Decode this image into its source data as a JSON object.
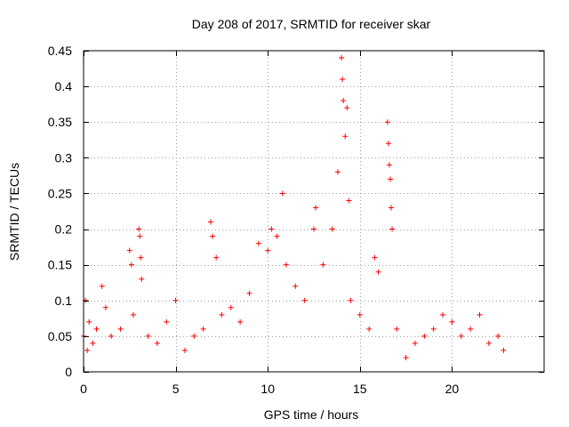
{
  "chart_data": {
    "type": "scatter",
    "title": "Day 208 of 2017, SRMTID for receiver skar",
    "xlabel": "GPS time / hours",
    "ylabel": "SRMTID / TECUs",
    "xlim": [
      0,
      25
    ],
    "ylim": [
      0,
      0.45
    ],
    "x_ticks": [
      {
        "value": 0,
        "label": "0"
      },
      {
        "value": 5,
        "label": "5"
      },
      {
        "value": 10,
        "label": "10"
      },
      {
        "value": 15,
        "label": "15"
      },
      {
        "value": 20,
        "label": "20"
      }
    ],
    "y_ticks": [
      {
        "value": 0,
        "label": "0"
      },
      {
        "value": 0.05,
        "label": "0.05"
      },
      {
        "value": 0.1,
        "label": "0.1"
      },
      {
        "value": 0.15,
        "label": "0.15"
      },
      {
        "value": 0.2,
        "label": "0.2"
      },
      {
        "value": 0.25,
        "label": "0.25"
      },
      {
        "value": 0.3,
        "label": "0.3"
      },
      {
        "value": 0.35,
        "label": "0.35"
      },
      {
        "value": 0.4,
        "label": "0.4"
      },
      {
        "value": 0.45,
        "label": "0.45"
      }
    ],
    "grid": true,
    "marker": "plus",
    "color": "#ff0000",
    "x_data_range": [
      0,
      22.8
    ],
    "series": [
      {
        "name": "SRMTID",
        "points": [
          {
            "x": 0.0,
            "y": 0.05
          },
          {
            "x": 0.1,
            "y": 0.1
          },
          {
            "x": 0.2,
            "y": 0.03
          },
          {
            "x": 0.3,
            "y": 0.07
          },
          {
            "x": 0.5,
            "y": 0.04
          },
          {
            "x": 0.7,
            "y": 0.06
          },
          {
            "x": 1.0,
            "y": 0.12
          },
          {
            "x": 1.2,
            "y": 0.09
          },
          {
            "x": 1.5,
            "y": 0.05
          },
          {
            "x": 2.0,
            "y": 0.06
          },
          {
            "x": 2.5,
            "y": 0.17
          },
          {
            "x": 2.6,
            "y": 0.15
          },
          {
            "x": 2.7,
            "y": 0.08
          },
          {
            "x": 3.0,
            "y": 0.2
          },
          {
            "x": 3.05,
            "y": 0.19
          },
          {
            "x": 3.1,
            "y": 0.16
          },
          {
            "x": 3.15,
            "y": 0.13
          },
          {
            "x": 3.5,
            "y": 0.05
          },
          {
            "x": 4.0,
            "y": 0.04
          },
          {
            "x": 4.5,
            "y": 0.07
          },
          {
            "x": 5.0,
            "y": 0.1
          },
          {
            "x": 5.5,
            "y": 0.03
          },
          {
            "x": 6.0,
            "y": 0.05
          },
          {
            "x": 6.5,
            "y": 0.06
          },
          {
            "x": 6.9,
            "y": 0.21
          },
          {
            "x": 7.0,
            "y": 0.19
          },
          {
            "x": 7.2,
            "y": 0.16
          },
          {
            "x": 7.5,
            "y": 0.08
          },
          {
            "x": 8.0,
            "y": 0.09
          },
          {
            "x": 8.5,
            "y": 0.07
          },
          {
            "x": 9.0,
            "y": 0.11
          },
          {
            "x": 9.5,
            "y": 0.18
          },
          {
            "x": 10.0,
            "y": 0.17
          },
          {
            "x": 10.2,
            "y": 0.2
          },
          {
            "x": 10.5,
            "y": 0.19
          },
          {
            "x": 10.8,
            "y": 0.25
          },
          {
            "x": 11.0,
            "y": 0.15
          },
          {
            "x": 11.5,
            "y": 0.12
          },
          {
            "x": 12.0,
            "y": 0.1
          },
          {
            "x": 12.5,
            "y": 0.2
          },
          {
            "x": 12.6,
            "y": 0.23
          },
          {
            "x": 13.0,
            "y": 0.15
          },
          {
            "x": 13.5,
            "y": 0.2
          },
          {
            "x": 13.8,
            "y": 0.28
          },
          {
            "x": 14.0,
            "y": 0.44
          },
          {
            "x": 14.05,
            "y": 0.41
          },
          {
            "x": 14.1,
            "y": 0.38
          },
          {
            "x": 14.2,
            "y": 0.33
          },
          {
            "x": 14.3,
            "y": 0.37
          },
          {
            "x": 14.4,
            "y": 0.24
          },
          {
            "x": 14.5,
            "y": 0.1
          },
          {
            "x": 15.0,
            "y": 0.08
          },
          {
            "x": 15.5,
            "y": 0.06
          },
          {
            "x": 15.8,
            "y": 0.16
          },
          {
            "x": 16.0,
            "y": 0.14
          },
          {
            "x": 16.5,
            "y": 0.35
          },
          {
            "x": 16.55,
            "y": 0.32
          },
          {
            "x": 16.6,
            "y": 0.29
          },
          {
            "x": 16.65,
            "y": 0.27
          },
          {
            "x": 16.7,
            "y": 0.23
          },
          {
            "x": 16.75,
            "y": 0.2
          },
          {
            "x": 17.0,
            "y": 0.06
          },
          {
            "x": 17.5,
            "y": 0.02
          },
          {
            "x": 18.0,
            "y": 0.04
          },
          {
            "x": 18.5,
            "y": 0.05
          },
          {
            "x": 19.0,
            "y": 0.06
          },
          {
            "x": 19.5,
            "y": 0.08
          },
          {
            "x": 20.0,
            "y": 0.07
          },
          {
            "x": 20.5,
            "y": 0.05
          },
          {
            "x": 21.0,
            "y": 0.06
          },
          {
            "x": 21.5,
            "y": 0.08
          },
          {
            "x": 22.0,
            "y": 0.04
          },
          {
            "x": 22.5,
            "y": 0.05
          },
          {
            "x": 22.8,
            "y": 0.03
          }
        ]
      }
    ]
  }
}
